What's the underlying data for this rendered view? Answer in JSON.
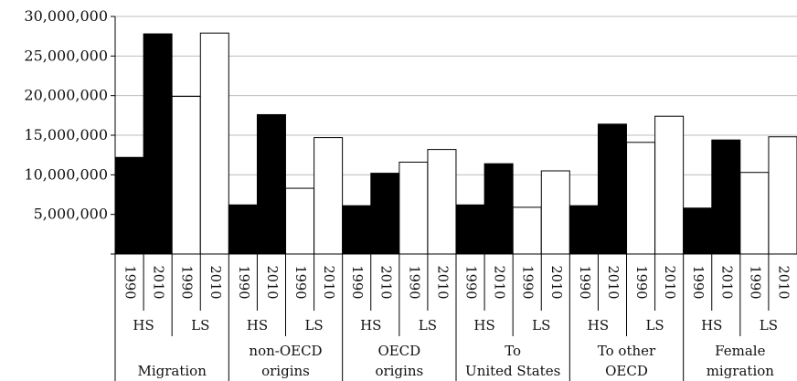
{
  "chart_data": {
    "type": "bar",
    "title": "",
    "xlabel": "",
    "ylabel": "",
    "ylim": [
      0,
      30000000
    ],
    "y_ticks": [
      "5,000,000",
      "10,000,000",
      "15,000,000",
      "20,000,000",
      "25,000,000",
      "30,000,000"
    ],
    "grid": true,
    "colors": {
      "HS": "#000000",
      "LS": "#ffffff",
      "outline": "#000000",
      "grid": "#bdbdbd"
    },
    "groups": [
      {
        "label_lines": [
          "",
          "Migration"
        ],
        "skills": [
          {
            "label": "HS",
            "bars": [
              {
                "year": "1990",
                "value": 12200000
              },
              {
                "year": "2010",
                "value": 27800000
              }
            ]
          },
          {
            "label": "LS",
            "bars": [
              {
                "year": "1990",
                "value": 19900000
              },
              {
                "year": "2010",
                "value": 27900000
              }
            ]
          }
        ]
      },
      {
        "label_lines": [
          "non-OECD",
          "origins"
        ],
        "skills": [
          {
            "label": "HS",
            "bars": [
              {
                "year": "1990",
                "value": 6200000
              },
              {
                "year": "2010",
                "value": 17600000
              }
            ]
          },
          {
            "label": "LS",
            "bars": [
              {
                "year": "1990",
                "value": 8300000
              },
              {
                "year": "2010",
                "value": 14700000
              }
            ]
          }
        ]
      },
      {
        "label_lines": [
          "OECD",
          "origins"
        ],
        "skills": [
          {
            "label": "HS",
            "bars": [
              {
                "year": "1990",
                "value": 6100000
              },
              {
                "year": "2010",
                "value": 10200000
              }
            ]
          },
          {
            "label": "LS",
            "bars": [
              {
                "year": "1990",
                "value": 11600000
              },
              {
                "year": "2010",
                "value": 13200000
              }
            ]
          }
        ]
      },
      {
        "label_lines": [
          "To",
          "United States"
        ],
        "skills": [
          {
            "label": "HS",
            "bars": [
              {
                "year": "1990",
                "value": 6200000
              },
              {
                "year": "2010",
                "value": 11400000
              }
            ]
          },
          {
            "label": "LS",
            "bars": [
              {
                "year": "1990",
                "value": 5900000
              },
              {
                "year": "2010",
                "value": 10500000
              }
            ]
          }
        ]
      },
      {
        "label_lines": [
          "To other",
          "OECD"
        ],
        "skills": [
          {
            "label": "HS",
            "bars": [
              {
                "year": "1990",
                "value": 6100000
              },
              {
                "year": "2010",
                "value": 16400000
              }
            ]
          },
          {
            "label": "LS",
            "bars": [
              {
                "year": "1990",
                "value": 14100000
              },
              {
                "year": "2010",
                "value": 17400000
              }
            ]
          }
        ]
      },
      {
        "label_lines": [
          "Female",
          "migration"
        ],
        "skills": [
          {
            "label": "HS",
            "bars": [
              {
                "year": "1990",
                "value": 5800000
              },
              {
                "year": "2010",
                "value": 14400000
              }
            ]
          },
          {
            "label": "LS",
            "bars": [
              {
                "year": "1990",
                "value": 10300000
              },
              {
                "year": "2010",
                "value": 14800000
              }
            ]
          }
        ]
      }
    ]
  }
}
